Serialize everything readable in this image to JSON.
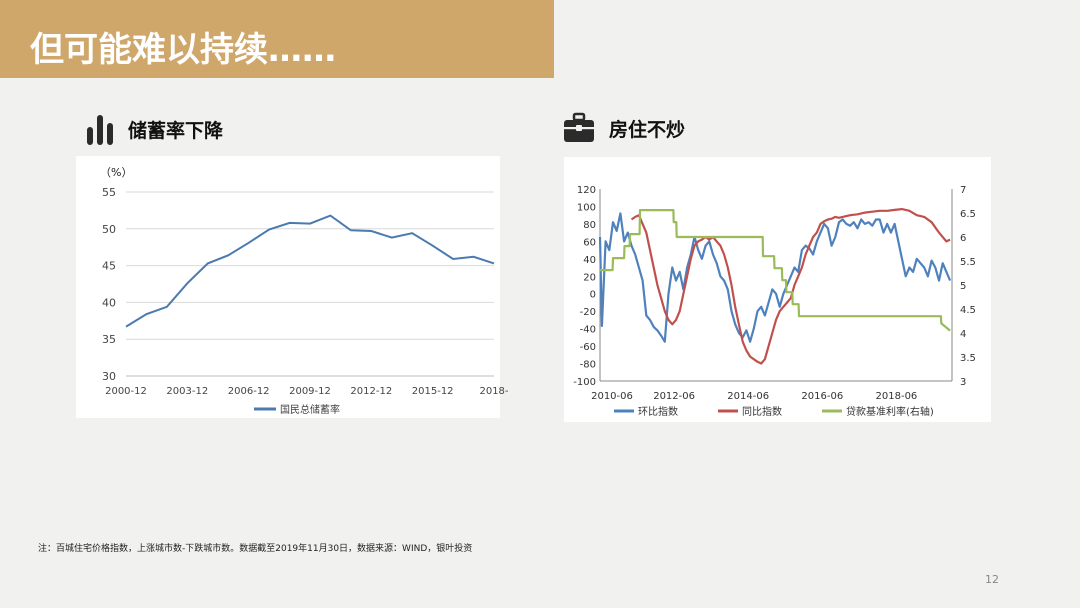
{
  "header": {
    "title": "但可能难以持续……"
  },
  "sections": {
    "left": {
      "label": "储蓄率下降",
      "icon": "bar-chart-icon"
    },
    "right": {
      "label": "房住不炒",
      "icon": "briefcase-icon"
    }
  },
  "footnote": "注：百城住宅价格指数，上涨城市数-下跌城市数。数据截至2019年11月30日，数据来源：WIND，银叶投资",
  "page_number": "12",
  "colors": {
    "title_bar": "#d0a76b",
    "line_left": "#4a7ab0",
    "ring": "#4f81bd",
    "yoy": "#c0504d",
    "loan": "#9bbb59"
  },
  "chart_data": [
    {
      "type": "line",
      "unit_label": "（%）",
      "title": "",
      "ylim": [
        30,
        55
      ],
      "y_ticks": [
        30,
        35,
        40,
        45,
        50,
        55
      ],
      "x_tick_labels": [
        "2000-12",
        "2003-12",
        "2006-12",
        "2009-12",
        "2012-12",
        "2015-12",
        "2018-"
      ],
      "grid": true,
      "legend": "bottom",
      "series": [
        {
          "name": "国民总储蓄率",
          "x": [
            2000,
            2001,
            2002,
            2003,
            2004,
            2005,
            2006,
            2007,
            2008,
            2009,
            2010,
            2011,
            2012,
            2013,
            2014,
            2015,
            2016,
            2017,
            2018
          ],
          "values": [
            36.7,
            38.4,
            39.4,
            42.6,
            45.3,
            46.4,
            48.1,
            49.9,
            50.8,
            50.7,
            51.8,
            49.8,
            49.7,
            48.8,
            49.4,
            47.7,
            45.9,
            46.2,
            45.3
          ]
        }
      ]
    },
    {
      "type": "line",
      "title": "",
      "ylim": [
        -100,
        120
      ],
      "y_ticks": [
        -100,
        -80,
        -60,
        -40,
        -20,
        0,
        20,
        40,
        60,
        80,
        100,
        120
      ],
      "y2lim": [
        3,
        7
      ],
      "y2_ticks": [
        "3",
        "3.5",
        "4",
        "4.5",
        "5",
        "5.5",
        "6",
        "6.5",
        "7"
      ],
      "x_tick_labels": [
        "2010-06",
        "2012-06",
        "2014-06",
        "2016-06",
        "2018-06"
      ],
      "grid": false,
      "legend": "bottom",
      "series": [
        {
          "name": "环比指数",
          "axis": "left",
          "x": [
            2010.45,
            2010.5,
            2010.6,
            2010.7,
            2010.8,
            2010.9,
            2011.0,
            2011.1,
            2011.2,
            2011.3,
            2011.4,
            2011.5,
            2011.6,
            2011.7,
            2011.8,
            2011.9,
            2012.0,
            2012.1,
            2012.2,
            2012.3,
            2012.4,
            2012.5,
            2012.6,
            2012.7,
            2012.8,
            2012.9,
            2013.0,
            2013.1,
            2013.2,
            2013.3,
            2013.4,
            2013.5,
            2013.6,
            2013.7,
            2013.8,
            2013.9,
            2014.0,
            2014.1,
            2014.2,
            2014.3,
            2014.4,
            2014.5,
            2014.6,
            2014.7,
            2014.8,
            2014.9,
            2015.0,
            2015.1,
            2015.2,
            2015.3,
            2015.4,
            2015.5,
            2015.6,
            2015.7,
            2015.8,
            2015.9,
            2016.0,
            2016.1,
            2016.2,
            2016.3,
            2016.4,
            2016.5,
            2016.6,
            2016.7,
            2016.8,
            2016.9,
            2017.0,
            2017.1,
            2017.2,
            2017.3,
            2017.4,
            2017.5,
            2017.6,
            2017.7,
            2017.8,
            2017.9,
            2018.0,
            2018.1,
            2018.2,
            2018.3,
            2018.4,
            2018.5,
            2018.6,
            2018.7,
            2018.8,
            2018.9,
            2019.0,
            2019.1,
            2019.2,
            2019.3,
            2019.4,
            2019.5,
            2019.6,
            2019.7,
            2019.8,
            2019.9
          ],
          "values": [
            65,
            -37,
            60,
            50,
            82,
            72,
            92,
            60,
            70,
            55,
            45,
            30,
            15,
            -25,
            -30,
            -38,
            -42,
            -48,
            -55,
            0,
            30,
            15,
            25,
            5,
            30,
            45,
            65,
            50,
            40,
            55,
            60,
            45,
            35,
            20,
            15,
            5,
            -20,
            -35,
            -45,
            -50,
            -42,
            -55,
            -40,
            -20,
            -15,
            -25,
            -10,
            5,
            0,
            -15,
            0,
            10,
            20,
            30,
            25,
            50,
            55,
            52,
            45,
            60,
            70,
            80,
            75,
            55,
            65,
            82,
            85,
            80,
            78,
            82,
            75,
            85,
            80,
            82,
            78,
            85,
            85,
            70,
            80,
            70,
            80,
            60,
            40,
            20,
            30,
            25,
            40,
            35,
            30,
            20,
            38,
            30,
            15,
            35,
            25,
            15
          ]
        },
        {
          "name": "同比指数",
          "axis": "left",
          "x": [
            2011.3,
            2011.4,
            2011.5,
            2011.6,
            2011.7,
            2011.8,
            2011.9,
            2012.0,
            2012.1,
            2012.2,
            2012.3,
            2012.4,
            2012.5,
            2012.6,
            2012.7,
            2012.8,
            2012.9,
            2013.0,
            2013.1,
            2013.2,
            2013.3,
            2013.4,
            2013.5,
            2013.6,
            2013.7,
            2013.8,
            2013.9,
            2014.0,
            2014.1,
            2014.2,
            2014.3,
            2014.4,
            2014.5,
            2014.6,
            2014.7,
            2014.8,
            2014.9,
            2015.0,
            2015.1,
            2015.2,
            2015.3,
            2015.4,
            2015.5,
            2015.6,
            2015.7,
            2015.8,
            2015.9,
            2016.0,
            2016.1,
            2016.2,
            2016.3,
            2016.4,
            2016.5,
            2016.6,
            2016.7,
            2016.8,
            2016.9,
            2017.0,
            2017.2,
            2017.4,
            2017.6,
            2017.8,
            2018.0,
            2018.2,
            2018.4,
            2018.6,
            2018.8,
            2019.0,
            2019.2,
            2019.4,
            2019.6,
            2019.8,
            2019.9
          ],
          "values": [
            85,
            88,
            90,
            80,
            70,
            50,
            30,
            10,
            -5,
            -20,
            -30,
            -35,
            -30,
            -20,
            0,
            20,
            40,
            55,
            60,
            62,
            65,
            62,
            65,
            60,
            55,
            45,
            30,
            10,
            -15,
            -35,
            -55,
            -65,
            -72,
            -75,
            -78,
            -80,
            -75,
            -60,
            -45,
            -30,
            -20,
            -15,
            -10,
            -5,
            10,
            20,
            30,
            45,
            55,
            65,
            70,
            80,
            83,
            85,
            86,
            88,
            87,
            88,
            90,
            91,
            93,
            94,
            95,
            95,
            96,
            97,
            95,
            90,
            88,
            82,
            70,
            60,
            62
          ]
        },
        {
          "name": "贷款基准利率(右轴)",
          "axis": "right",
          "x": [
            2010.45,
            2010.79,
            2010.8,
            2011.1,
            2011.11,
            2011.25,
            2011.26,
            2011.52,
            2011.53,
            2012.43,
            2012.44,
            2012.51,
            2012.52,
            2014.84,
            2014.85,
            2015.15,
            2015.16,
            2015.36,
            2015.37,
            2015.47,
            2015.48,
            2015.64,
            2015.65,
            2015.81,
            2015.82,
            2019.65,
            2019.66,
            2019.9
          ],
          "values": [
            5.31,
            5.31,
            5.56,
            5.56,
            5.81,
            5.81,
            6.06,
            6.06,
            6.56,
            6.56,
            6.31,
            6.31,
            6.0,
            6.0,
            5.6,
            5.6,
            5.35,
            5.35,
            5.1,
            5.1,
            4.85,
            4.85,
            4.6,
            4.6,
            4.35,
            4.35,
            4.2,
            4.05
          ]
        }
      ]
    }
  ]
}
